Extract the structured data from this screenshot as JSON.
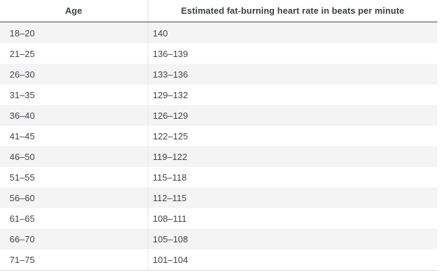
{
  "chart_data": {
    "type": "table",
    "columns": [
      "Age",
      "Estimated fat-burning heart rate in beats per minute"
    ],
    "rows": [
      [
        "18–20",
        "140"
      ],
      [
        "21–25",
        "136–139"
      ],
      [
        "26–30",
        "133–136"
      ],
      [
        "31–35",
        "129–132"
      ],
      [
        "36–40",
        "126–129"
      ],
      [
        "41–45",
        "122–125"
      ],
      [
        "46–50",
        "119–122"
      ],
      [
        "51–55",
        "115–118"
      ],
      [
        "56–60",
        "112–115"
      ],
      [
        "61–65",
        "108–111"
      ],
      [
        "66–70",
        "105–108"
      ],
      [
        "71–75",
        "101–104"
      ]
    ],
    "layout": {
      "striped": true,
      "first_data_row_shaded": true
    }
  },
  "colors": {
    "row_alt_bg": "#f4f4f5",
    "row_bg": "#ffffff",
    "header_underline": "#9b9b9b",
    "column_divider": "#e7e7e7",
    "table_bottom_border": "#d7d7d7",
    "text": "#3f4247",
    "header_text": "#3c4043"
  }
}
